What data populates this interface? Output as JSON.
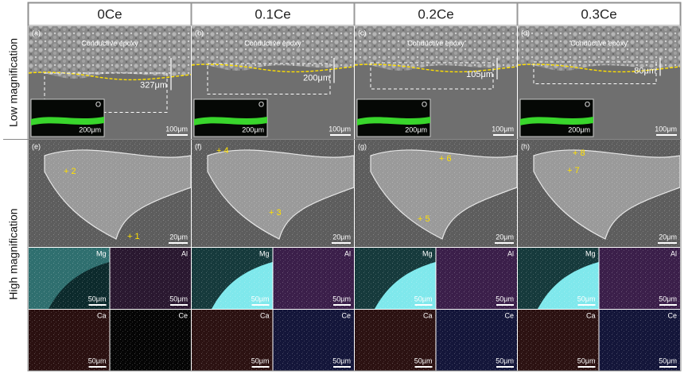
{
  "row_labels": [
    "Low magnification",
    "High magnification"
  ],
  "columns": [
    {
      "header": "0Ce",
      "low": {
        "letter": "(a)",
        "epoxy_label": "Conductive epoxy",
        "depth": "327μm",
        "scale": "100μm",
        "inset_element": "O",
        "inset_scale": "200μm"
      },
      "high": {
        "letter": "(e)",
        "points": [
          "+ 2",
          "+ 1"
        ],
        "scale": "20μm",
        "maps": [
          {
            "element": "Mg",
            "scale": "50μm"
          },
          {
            "element": "Al",
            "scale": "50μm"
          },
          {
            "element": "Ca",
            "scale": "50μm"
          },
          {
            "element": "Ce"
          }
        ]
      }
    },
    {
      "header": "0.1Ce",
      "low": {
        "letter": "(b)",
        "epoxy_label": "Conductive epoxy",
        "depth": "200μm",
        "scale": "100μm",
        "inset_element": "O",
        "inset_scale": "200μm"
      },
      "high": {
        "letter": "(f)",
        "points": [
          "+ 4",
          "+ 3"
        ],
        "scale": "20μm",
        "maps": [
          {
            "element": "Mg",
            "scale": "50μm"
          },
          {
            "element": "Al",
            "scale": "50μm"
          },
          {
            "element": "Ca",
            "scale": "50μm"
          },
          {
            "element": "Ce",
            "scale": "50μm"
          }
        ]
      }
    },
    {
      "header": "0.2Ce",
      "low": {
        "letter": "(c)",
        "epoxy_label": "Conductive epoxy",
        "depth": "105μm",
        "scale": "100μm",
        "inset_element": "O",
        "inset_scale": "200μm"
      },
      "high": {
        "letter": "(g)",
        "points": [
          "+ 6",
          "+ 5"
        ],
        "scale": "20μm",
        "maps": [
          {
            "element": "Mg",
            "scale": "50μm"
          },
          {
            "element": "Al",
            "scale": "50μm"
          },
          {
            "element": "Ca",
            "scale": "50μm"
          },
          {
            "element": "Ce",
            "scale": "50μm"
          }
        ]
      }
    },
    {
      "header": "0.3Ce",
      "low": {
        "letter": "(d)",
        "epoxy_label": "Conductive epoxy",
        "depth": "80μm",
        "scale": "100μm",
        "inset_element": "O",
        "inset_scale": "200μm"
      },
      "high": {
        "letter": "(h)",
        "points": [
          "+ 8",
          "+ 7"
        ],
        "scale": "20μm",
        "maps": [
          {
            "element": "Mg",
            "scale": "50μm"
          },
          {
            "element": "Al",
            "scale": "50μm"
          },
          {
            "element": "Ca",
            "scale": "50μm"
          },
          {
            "element": "Ce",
            "scale": "50μm"
          }
        ]
      }
    }
  ]
}
